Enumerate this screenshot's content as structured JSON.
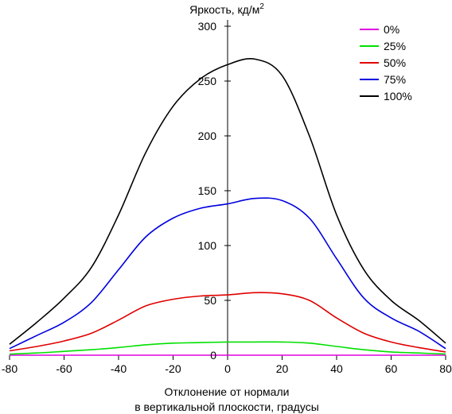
{
  "chart_data": {
    "type": "line",
    "ylabel": "Яркость, кд/м",
    "ylabel_sup": "2",
    "xlabel_line1": "Отклонение от нормали",
    "xlabel_line2": "в вертикальной плоскости, градусы",
    "xlim": [
      -80,
      80
    ],
    "ylim": [
      0,
      300
    ],
    "xticks": [
      -80,
      -60,
      -40,
      -20,
      0,
      20,
      40,
      60,
      80
    ],
    "yticks": [
      0,
      50,
      100,
      150,
      200,
      250,
      300
    ],
    "legend_position": "top-right",
    "grid": false,
    "x": [
      -80,
      -70,
      -60,
      -50,
      -40,
      -30,
      -20,
      -10,
      0,
      10,
      20,
      30,
      40,
      50,
      60,
      70,
      80
    ],
    "series": [
      {
        "name": "0%",
        "color": "#e000e0",
        "values": [
          0,
          0,
          0,
          0,
          0,
          0,
          0,
          0,
          0,
          0,
          0,
          0,
          0,
          0,
          0,
          0,
          0
        ]
      },
      {
        "name": "25%",
        "color": "#00e000",
        "values": [
          1,
          2,
          3.5,
          5,
          7,
          9.5,
          11,
          11.5,
          12,
          12,
          12,
          11,
          8,
          5,
          3,
          2,
          1
        ]
      },
      {
        "name": "50%",
        "color": "#e00000",
        "values": [
          4,
          8,
          13,
          20,
          32,
          45,
          51,
          54,
          55,
          57,
          56,
          50,
          34,
          20,
          12,
          7,
          3
        ]
      },
      {
        "name": "75%",
        "color": "#0000e0",
        "values": [
          6,
          18,
          30,
          48,
          78,
          108,
          125,
          134,
          138,
          143,
          141,
          125,
          88,
          52,
          34,
          22,
          6
        ]
      },
      {
        "name": "100%",
        "color": "#000000",
        "values": [
          10,
          30,
          52,
          80,
          128,
          185,
          227,
          252,
          265,
          270,
          255,
          200,
          128,
          78,
          50,
          32,
          11
        ]
      }
    ]
  }
}
